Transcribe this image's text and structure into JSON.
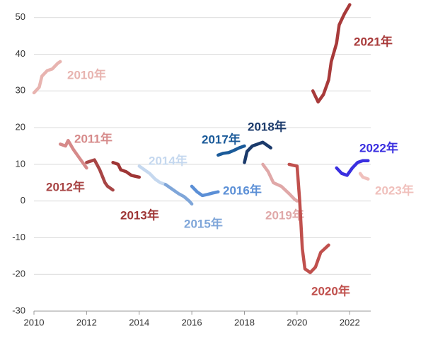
{
  "chart_data": {
    "type": "line",
    "xlim": [
      2010,
      2022.8
    ],
    "ylim": [
      -30,
      54
    ],
    "xticks": [
      2010,
      2012,
      2014,
      2016,
      2018,
      2020,
      2022
    ],
    "yticks": [
      -30,
      -20,
      -10,
      0,
      10,
      20,
      30,
      40,
      50
    ],
    "grid": true,
    "series": [
      {
        "name": "2010年",
        "color": "#e8b4b0",
        "x": [
          2010.0,
          2010.2,
          2010.3,
          2010.5,
          2010.7,
          2010.9,
          2011.0
        ],
        "values": [
          29.5,
          31,
          34,
          35.5,
          36,
          37.5,
          38
        ]
      },
      {
        "name": "2011年",
        "color": "#d68a8a",
        "x": [
          2011.0,
          2011.2,
          2011.3,
          2011.5,
          2011.7,
          2011.9,
          2012.0
        ],
        "values": [
          15.5,
          15,
          16.5,
          14,
          12,
          10,
          9
        ]
      },
      {
        "name": "2012年",
        "color": "#a84545",
        "x": [
          2012.0,
          2012.3,
          2012.5,
          2012.7,
          2012.8,
          2013.0
        ],
        "values": [
          10.5,
          11.2,
          8.5,
          5,
          4,
          3
        ]
      },
      {
        "name": "2013年",
        "color": "#9e3535",
        "x": [
          2013.0,
          2013.2,
          2013.3,
          2013.5,
          2013.7,
          2014.0
        ],
        "values": [
          10.5,
          10,
          8.5,
          8,
          7,
          6.5
        ]
      },
      {
        "name": "2014年",
        "color": "#c5d8ef",
        "x": [
          2014.0,
          2014.2,
          2014.4,
          2014.6,
          2014.8,
          2015.0
        ],
        "values": [
          9.5,
          8.5,
          7.5,
          6,
          5,
          4.5
        ]
      },
      {
        "name": "2015年",
        "color": "#7fa6d9",
        "x": [
          2015.0,
          2015.3,
          2015.5,
          2015.7,
          2015.9,
          2016.0
        ],
        "values": [
          4.5,
          3,
          2,
          1.2,
          0,
          -0.8
        ]
      },
      {
        "name": "2016年",
        "color": "#5b8fd6",
        "x": [
          2016.0,
          2016.2,
          2016.4,
          2016.6,
          2016.8,
          2017.0
        ],
        "values": [
          4,
          2.5,
          1.5,
          1.8,
          2.2,
          2.5
        ]
      },
      {
        "name": "2017年",
        "color": "#1a5a99",
        "x": [
          2017.0,
          2017.2,
          2017.4,
          2017.6,
          2017.8,
          2018.0
        ],
        "values": [
          12.5,
          13,
          13.2,
          13.8,
          14.5,
          15
        ]
      },
      {
        "name": "2018年",
        "color": "#1b3a6b",
        "x": [
          2018.0,
          2018.1,
          2018.3,
          2018.5,
          2018.7,
          2018.9,
          2019.0
        ],
        "values": [
          10.5,
          13.5,
          15,
          15.5,
          16,
          15,
          14.5
        ]
      },
      {
        "name": "2019年",
        "color": "#e0a8a8",
        "x": [
          2018.7,
          2018.9,
          2019.1,
          2019.4,
          2019.7,
          2019.9,
          2020.0
        ],
        "values": [
          10,
          8,
          5,
          4,
          2,
          0.5,
          0
        ]
      },
      {
        "name": "2020年",
        "color": "#c0504d",
        "x": [
          2019.7,
          2020.0,
          2020.1,
          2020.2,
          2020.3,
          2020.5,
          2020.7,
          2020.9,
          2021.2
        ],
        "values": [
          10,
          9.5,
          0,
          -13,
          -18.5,
          -19.5,
          -18,
          -14,
          -12
        ]
      },
      {
        "name": "2021年",
        "color": "#a83a3a",
        "x": [
          2020.6,
          2020.8,
          2021.0,
          2021.2,
          2021.3,
          2021.5,
          2021.6,
          2021.8,
          2022.0
        ],
        "values": [
          30,
          27,
          29,
          33,
          38,
          43,
          48,
          51,
          53.5
        ]
      },
      {
        "name": "2022年",
        "color": "#3a2fe0",
        "x": [
          2021.5,
          2021.7,
          2021.9,
          2022.1,
          2022.3,
          2022.5,
          2022.7
        ],
        "values": [
          9,
          7.5,
          7,
          9,
          10.5,
          11,
          11
        ]
      },
      {
        "name": "2023年",
        "color": "#f0c0bc",
        "x": [
          2022.4,
          2022.5,
          2022.7
        ],
        "values": [
          7.5,
          6.5,
          6
        ]
      }
    ]
  }
}
